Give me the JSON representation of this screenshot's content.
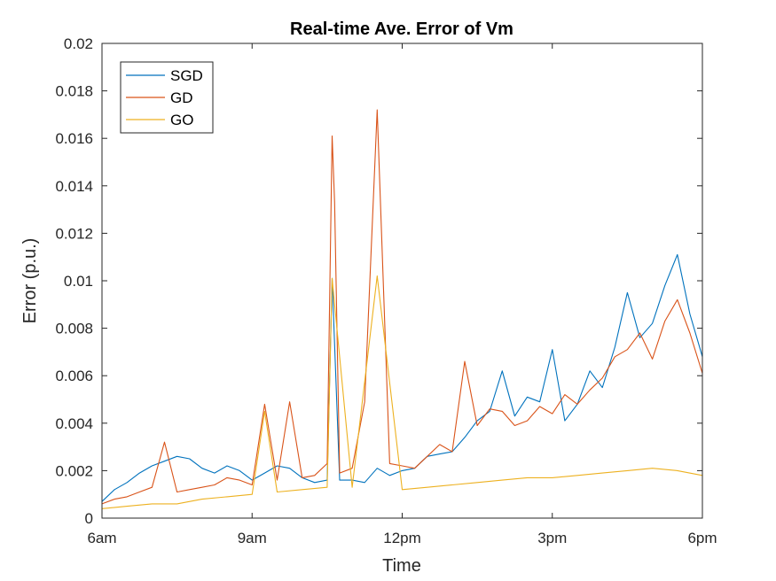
{
  "chart_data": {
    "type": "line",
    "title": "Real-time Ave. Error of Vm",
    "xlabel": "Time",
    "ylabel": "Error (p.u.)",
    "x_ticks": [
      "6am",
      "9am",
      "12pm",
      "3pm",
      "6pm"
    ],
    "x_range_hours": [
      6,
      18
    ],
    "ylim": [
      0,
      0.02
    ],
    "y_ticks": [
      "0",
      "0.002",
      "0.004",
      "0.006",
      "0.008",
      "0.01",
      "0.012",
      "0.014",
      "0.016",
      "0.018",
      "0.02"
    ],
    "grid": false,
    "legend_position": "top-left",
    "series": [
      {
        "name": "SGD",
        "color": "#0072BD",
        "x": [
          6.0,
          6.25,
          6.5,
          6.75,
          7.0,
          7.25,
          7.5,
          7.75,
          8.0,
          8.25,
          8.5,
          8.75,
          9.0,
          9.25,
          9.5,
          9.75,
          10.0,
          10.25,
          10.5,
          10.6,
          10.75,
          11.0,
          11.25,
          11.5,
          11.75,
          12.0,
          12.25,
          12.5,
          12.75,
          13.0,
          13.25,
          13.5,
          13.75,
          14.0,
          14.25,
          14.5,
          14.75,
          15.0,
          15.25,
          15.5,
          15.75,
          16.0,
          16.25,
          16.5,
          16.75,
          17.0,
          17.25,
          17.5,
          17.75,
          18.0
        ],
        "y": [
          0.0007,
          0.0012,
          0.0015,
          0.0019,
          0.0022,
          0.0024,
          0.0026,
          0.0025,
          0.0021,
          0.0019,
          0.0022,
          0.002,
          0.0016,
          0.0019,
          0.0022,
          0.0021,
          0.0017,
          0.0015,
          0.0016,
          0.0101,
          0.0016,
          0.0016,
          0.0015,
          0.0021,
          0.0018,
          0.002,
          0.0021,
          0.0026,
          0.0027,
          0.0028,
          0.0034,
          0.0041,
          0.0045,
          0.0062,
          0.0043,
          0.0051,
          0.0049,
          0.0071,
          0.0041,
          0.0048,
          0.0062,
          0.0055,
          0.0072,
          0.0095,
          0.0076,
          0.0082,
          0.0098,
          0.0111,
          0.0086,
          0.0068
        ]
      },
      {
        "name": "GD",
        "color": "#D95319",
        "x": [
          6.0,
          6.25,
          6.5,
          6.75,
          7.0,
          7.25,
          7.5,
          7.75,
          8.0,
          8.25,
          8.5,
          8.75,
          9.0,
          9.25,
          9.5,
          9.75,
          10.0,
          10.25,
          10.5,
          10.6,
          10.65,
          10.75,
          11.0,
          11.25,
          11.5,
          11.75,
          12.0,
          12.25,
          12.5,
          12.75,
          13.0,
          13.25,
          13.5,
          13.75,
          14.0,
          14.25,
          14.5,
          14.75,
          15.0,
          15.25,
          15.5,
          15.75,
          16.0,
          16.25,
          16.5,
          16.75,
          17.0,
          17.25,
          17.5,
          17.75,
          18.0
        ],
        "y": [
          0.0006,
          0.0008,
          0.0009,
          0.0011,
          0.0013,
          0.0032,
          0.0011,
          0.0012,
          0.0013,
          0.0014,
          0.0017,
          0.0016,
          0.0014,
          0.0048,
          0.0016,
          0.0049,
          0.0017,
          0.0018,
          0.0023,
          0.0161,
          0.0133,
          0.0019,
          0.0021,
          0.0049,
          0.0172,
          0.0023,
          0.0022,
          0.0021,
          0.0026,
          0.0031,
          0.0028,
          0.0066,
          0.0039,
          0.0046,
          0.0045,
          0.0039,
          0.0041,
          0.0047,
          0.0044,
          0.0052,
          0.0048,
          0.0054,
          0.0059,
          0.0068,
          0.0071,
          0.0078,
          0.0067,
          0.0083,
          0.0092,
          0.0078,
          0.0061
        ]
      },
      {
        "name": "GO",
        "color": "#EDB120",
        "x": [
          6.0,
          6.5,
          7.0,
          7.5,
          8.0,
          8.5,
          9.0,
          9.25,
          9.5,
          10.0,
          10.5,
          10.6,
          11.0,
          11.5,
          12.0,
          12.5,
          13.0,
          13.5,
          14.0,
          14.5,
          15.0,
          15.5,
          16.0,
          16.5,
          17.0,
          17.5,
          18.0
        ],
        "y": [
          0.0004,
          0.0005,
          0.0006,
          0.0006,
          0.0008,
          0.0009,
          0.001,
          0.0045,
          0.0011,
          0.0012,
          0.0013,
          0.0101,
          0.0013,
          0.0102,
          0.0012,
          0.0013,
          0.0014,
          0.0015,
          0.0016,
          0.0017,
          0.0017,
          0.0018,
          0.0019,
          0.002,
          0.0021,
          0.002,
          0.0018
        ]
      }
    ]
  }
}
